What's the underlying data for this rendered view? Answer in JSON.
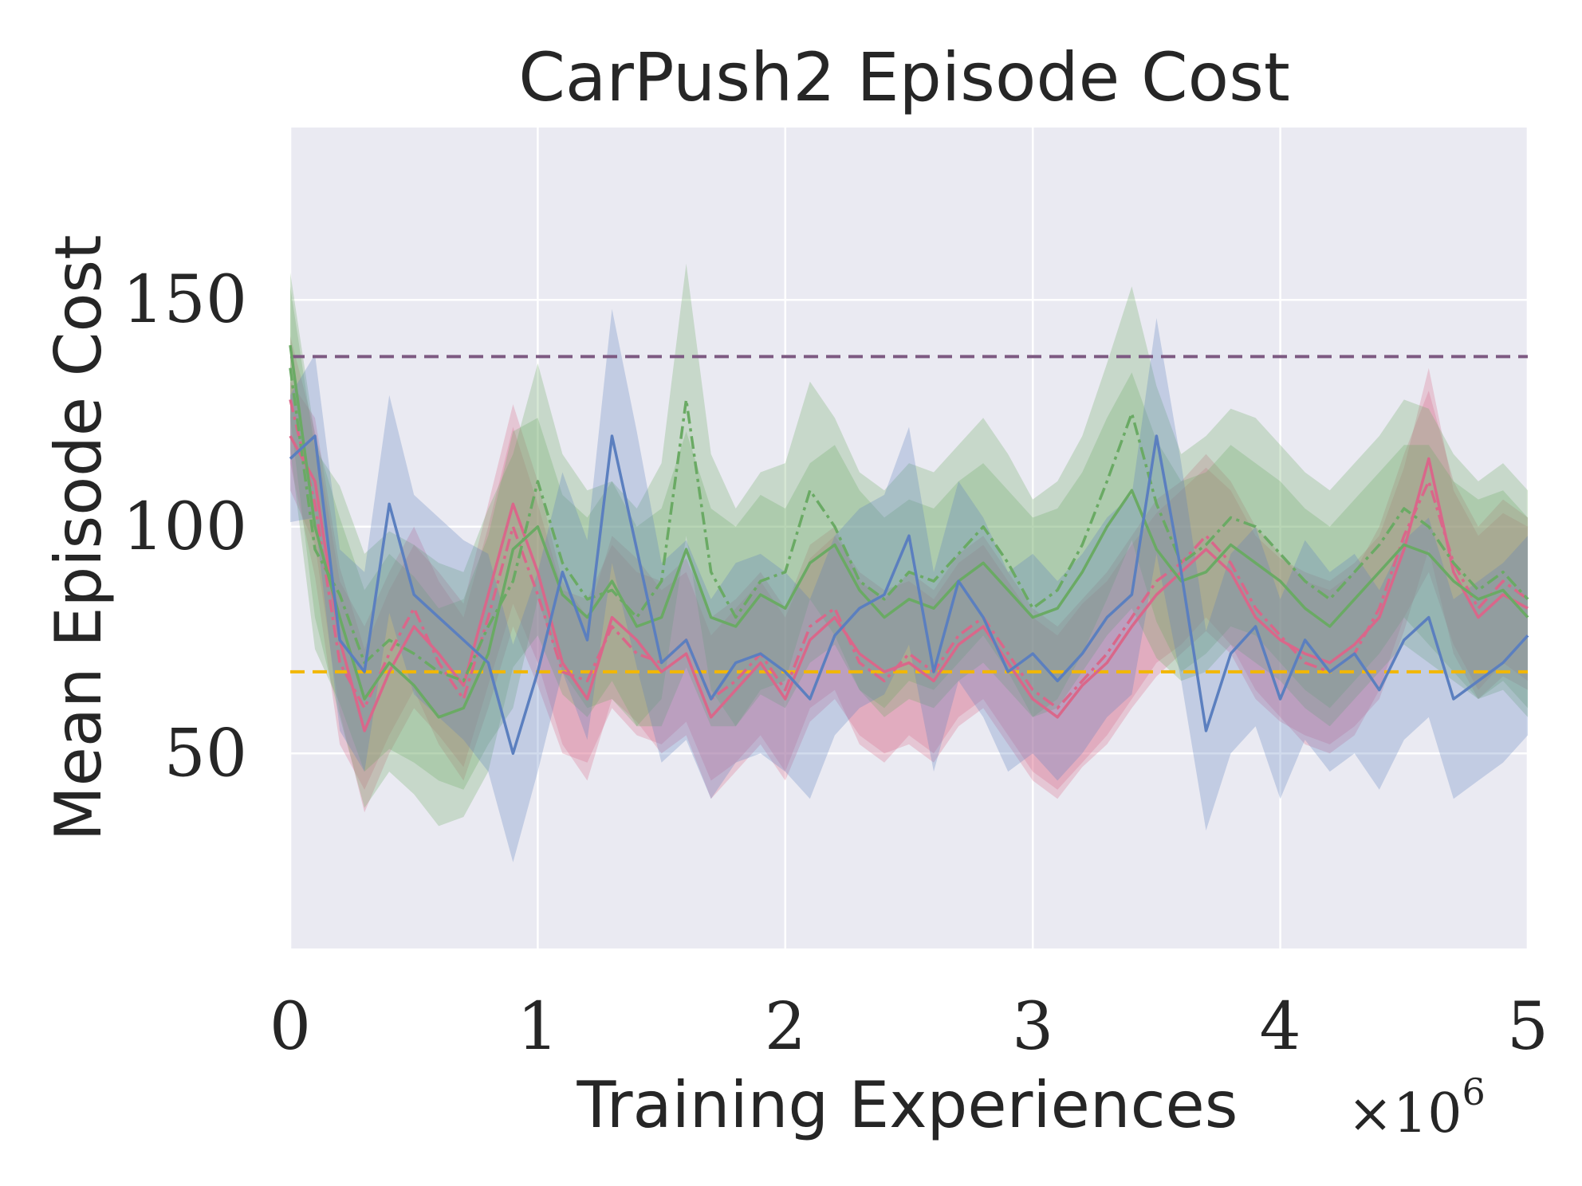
{
  "chart_data": {
    "type": "line",
    "title": "CarPush2 Episode Cost",
    "xlabel": "Training Experiences",
    "ylabel": "Mean Episode Cost",
    "x_multiplier": {
      "base": "×10",
      "exponent": "6"
    },
    "xlim": [
      0,
      5
    ],
    "ylim": [
      7,
      188
    ],
    "xticks": [
      0,
      1,
      2,
      3,
      4,
      5
    ],
    "xtick_labels": [
      "0",
      "1",
      "2",
      "3",
      "4",
      "5"
    ],
    "yticks": [
      50,
      100,
      150
    ],
    "ytick_labels": [
      "50",
      "100",
      "150"
    ],
    "grid": true,
    "background": "#eaeaf2",
    "reference_lines": [
      {
        "name": "purple-dashed",
        "y": 137.5,
        "color": "#7d5a82",
        "style": "dashed"
      },
      {
        "name": "yellow-dashed",
        "y": 68,
        "color": "#f2b705",
        "style": "dashed"
      }
    ],
    "series": [
      {
        "name": "red-solid",
        "color": "#d9678a",
        "style": "solid",
        "x": [
          0,
          0.1,
          0.2,
          0.3,
          0.4,
          0.5,
          0.6,
          0.7,
          0.8,
          0.9,
          1.0,
          1.1,
          1.2,
          1.3,
          1.4,
          1.5,
          1.6,
          1.7,
          1.8,
          1.9,
          2.0,
          2.1,
          2.2,
          2.3,
          2.4,
          2.5,
          2.6,
          2.7,
          2.8,
          2.9,
          3.0,
          3.1,
          3.2,
          3.3,
          3.4,
          3.5,
          3.6,
          3.7,
          3.8,
          3.9,
          4.0,
          4.1,
          4.2,
          4.3,
          4.4,
          4.5,
          4.6,
          4.7,
          4.8,
          4.9,
          5.0
        ],
        "values": [
          120,
          110,
          75,
          55,
          68,
          78,
          72,
          65,
          85,
          105,
          90,
          70,
          62,
          80,
          75,
          68,
          72,
          58,
          64,
          70,
          62,
          75,
          80,
          72,
          68,
          70,
          66,
          74,
          78,
          70,
          62,
          58,
          65,
          70,
          78,
          85,
          90,
          95,
          90,
          80,
          75,
          72,
          70,
          74,
          80,
          95,
          115,
          90,
          80,
          85,
          82
        ],
        "band": [
          12,
          14,
          16,
          18,
          18,
          18,
          18,
          18,
          20,
          22,
          20,
          18,
          18,
          18,
          18,
          18,
          18,
          18,
          18,
          18,
          18,
          18,
          18,
          18,
          18,
          18,
          18,
          18,
          18,
          18,
          18,
          18,
          18,
          18,
          18,
          18,
          18,
          18,
          18,
          18,
          18,
          18,
          18,
          18,
          18,
          18,
          20,
          18,
          18,
          18,
          18
        ]
      },
      {
        "name": "red-dashdot",
        "color": "#d9678a",
        "style": "dashdot",
        "x": [
          0,
          0.1,
          0.2,
          0.3,
          0.4,
          0.5,
          0.6,
          0.7,
          0.8,
          0.9,
          1.0,
          1.1,
          1.2,
          1.3,
          1.4,
          1.5,
          1.6,
          1.7,
          1.8,
          1.9,
          2.0,
          2.1,
          2.2,
          2.3,
          2.4,
          2.5,
          2.6,
          2.7,
          2.8,
          2.9,
          3.0,
          3.1,
          3.2,
          3.3,
          3.4,
          3.5,
          3.6,
          3.7,
          3.8,
          3.9,
          4.0,
          4.1,
          4.2,
          4.3,
          4.4,
          4.5,
          4.6,
          4.7,
          4.8,
          4.9,
          5.0
        ],
        "values": [
          128,
          105,
          70,
          60,
          72,
          82,
          70,
          62,
          80,
          100,
          85,
          68,
          66,
          78,
          72,
          70,
          75,
          62,
          66,
          72,
          64,
          78,
          82,
          70,
          66,
          72,
          68,
          76,
          80,
          72,
          64,
          60,
          66,
          72,
          80,
          88,
          92,
          98,
          92,
          82,
          76,
          70,
          68,
          72,
          82,
          98,
          110,
          92,
          82,
          88,
          84
        ],
        "band": [
          14,
          16,
          18,
          18,
          18,
          18,
          18,
          18,
          20,
          22,
          20,
          18,
          18,
          18,
          18,
          18,
          18,
          18,
          18,
          18,
          18,
          18,
          18,
          18,
          18,
          18,
          18,
          18,
          18,
          18,
          18,
          18,
          18,
          18,
          18,
          18,
          18,
          18,
          18,
          18,
          18,
          18,
          18,
          18,
          18,
          18,
          20,
          18,
          18,
          18,
          18
        ]
      },
      {
        "name": "green-solid",
        "color": "#6aaa64",
        "style": "solid",
        "x": [
          0,
          0.1,
          0.2,
          0.3,
          0.4,
          0.5,
          0.6,
          0.7,
          0.8,
          0.9,
          1.0,
          1.1,
          1.2,
          1.3,
          1.4,
          1.5,
          1.6,
          1.7,
          1.8,
          1.9,
          2.0,
          2.1,
          2.2,
          2.3,
          2.4,
          2.5,
          2.6,
          2.7,
          2.8,
          2.9,
          3.0,
          3.1,
          3.2,
          3.3,
          3.4,
          3.5,
          3.6,
          3.7,
          3.8,
          3.9,
          4.0,
          4.1,
          4.2,
          4.3,
          4.4,
          4.5,
          4.6,
          4.7,
          4.8,
          4.9,
          5.0
        ],
        "values": [
          140,
          100,
          80,
          62,
          70,
          65,
          58,
          60,
          72,
          95,
          100,
          85,
          80,
          88,
          78,
          80,
          95,
          80,
          78,
          85,
          82,
          92,
          96,
          86,
          80,
          84,
          82,
          88,
          92,
          86,
          80,
          82,
          90,
          100,
          108,
          95,
          88,
          90,
          96,
          92,
          88,
          82,
          78,
          84,
          90,
          96,
          94,
          88,
          84,
          86,
          80
        ],
        "band": [
          16,
          20,
          22,
          24,
          24,
          24,
          24,
          24,
          26,
          26,
          24,
          22,
          22,
          22,
          22,
          24,
          26,
          24,
          22,
          22,
          22,
          22,
          22,
          22,
          22,
          22,
          22,
          22,
          22,
          22,
          22,
          22,
          22,
          24,
          26,
          24,
          22,
          22,
          22,
          22,
          22,
          22,
          22,
          22,
          22,
          22,
          24,
          22,
          22,
          22,
          22
        ]
      },
      {
        "name": "green-dashdot",
        "color": "#6aaa64",
        "style": "dashdot",
        "x": [
          0,
          0.1,
          0.2,
          0.3,
          0.4,
          0.5,
          0.6,
          0.7,
          0.8,
          0.9,
          1.0,
          1.1,
          1.2,
          1.3,
          1.4,
          1.5,
          1.6,
          1.7,
          1.8,
          1.9,
          2.0,
          2.1,
          2.2,
          2.3,
          2.4,
          2.5,
          2.6,
          2.7,
          2.8,
          2.9,
          3.0,
          3.1,
          3.2,
          3.3,
          3.4,
          3.5,
          3.6,
          3.7,
          3.8,
          3.9,
          4.0,
          4.1,
          4.2,
          4.3,
          4.4,
          4.5,
          4.6,
          4.7,
          4.8,
          4.9,
          5.0
        ],
        "values": [
          135,
          95,
          85,
          70,
          75,
          72,
          68,
          66,
          78,
          88,
          110,
          92,
          84,
          86,
          80,
          88,
          128,
          90,
          80,
          88,
          90,
          108,
          100,
          88,
          84,
          90,
          88,
          94,
          100,
          92,
          82,
          86,
          96,
          110,
          125,
          105,
          92,
          96,
          102,
          100,
          94,
          88,
          84,
          90,
          96,
          104,
          100,
          92,
          86,
          90,
          84
        ],
        "band": [
          18,
          22,
          24,
          24,
          24,
          24,
          24,
          24,
          26,
          28,
          26,
          24,
          24,
          24,
          24,
          26,
          30,
          26,
          24,
          24,
          24,
          24,
          24,
          24,
          24,
          24,
          24,
          24,
          24,
          24,
          24,
          24,
          24,
          26,
          28,
          26,
          24,
          24,
          24,
          24,
          24,
          24,
          24,
          24,
          24,
          24,
          26,
          24,
          24,
          24,
          24
        ]
      },
      {
        "name": "blue-solid",
        "color": "#5b7fbf",
        "style": "solid",
        "x": [
          0,
          0.1,
          0.2,
          0.3,
          0.4,
          0.5,
          0.6,
          0.7,
          0.8,
          0.9,
          1.0,
          1.1,
          1.2,
          1.3,
          1.4,
          1.5,
          1.6,
          1.7,
          1.8,
          1.9,
          2.0,
          2.1,
          2.2,
          2.3,
          2.4,
          2.5,
          2.6,
          2.7,
          2.8,
          2.9,
          3.0,
          3.1,
          3.2,
          3.3,
          3.4,
          3.5,
          3.6,
          3.7,
          3.8,
          3.9,
          4.0,
          4.1,
          4.2,
          4.3,
          4.4,
          4.5,
          4.6,
          4.7,
          4.8,
          4.9,
          5.0
        ],
        "values": [
          115,
          120,
          75,
          68,
          105,
          85,
          80,
          75,
          70,
          50,
          68,
          90,
          75,
          120,
          95,
          70,
          75,
          62,
          70,
          72,
          68,
          62,
          76,
          82,
          85,
          98,
          68,
          88,
          80,
          68,
          72,
          66,
          72,
          80,
          85,
          120,
          90,
          55,
          72,
          78,
          62,
          75,
          68,
          72,
          64,
          75,
          80,
          62,
          66,
          70,
          76
        ],
        "band": [
          14,
          18,
          20,
          22,
          24,
          22,
          22,
          22,
          24,
          24,
          22,
          22,
          22,
          28,
          26,
          22,
          22,
          22,
          22,
          22,
          22,
          22,
          22,
          22,
          22,
          24,
          22,
          22,
          22,
          22,
          22,
          22,
          22,
          22,
          22,
          26,
          24,
          22,
          22,
          22,
          22,
          22,
          22,
          22,
          22,
          22,
          22,
          22,
          22,
          22,
          22
        ]
      }
    ]
  }
}
